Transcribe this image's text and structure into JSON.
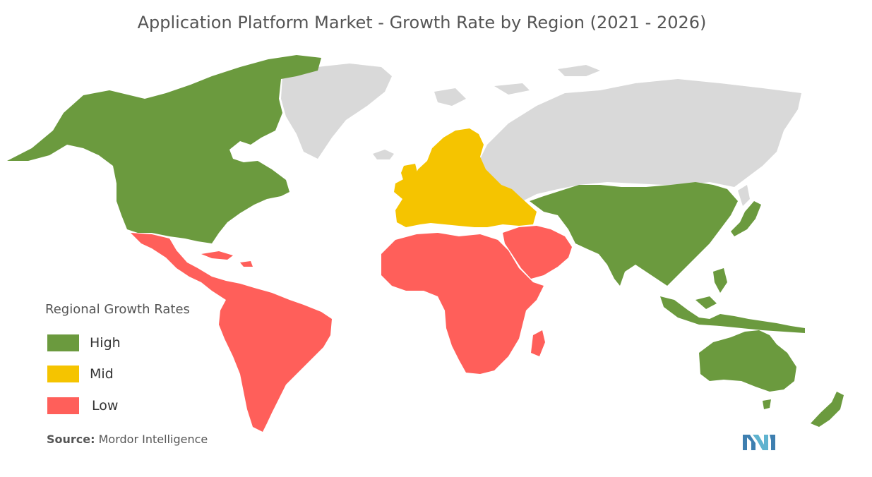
{
  "title": "Application Platform Market - Growth Rate by Region (2021 - 2026)",
  "legend": {
    "title": "Regional Growth Rates",
    "items": [
      {
        "label": "High",
        "color": "#6b9a3e"
      },
      {
        "label": "Mid",
        "color": "#f5c400"
      },
      {
        "label": "Low",
        "color": "#ff5f5a"
      }
    ]
  },
  "regions": [
    {
      "name": "North America",
      "level": "High"
    },
    {
      "name": "Europe",
      "level": "Mid"
    },
    {
      "name": "Asia Pacific",
      "level": "High"
    },
    {
      "name": "Latin America",
      "level": "Low"
    },
    {
      "name": "Middle East and Africa",
      "level": "Low"
    }
  ],
  "no_data_color": "#d9d9d9",
  "source": {
    "label": "Source:",
    "text": "Mordor Intelligence"
  }
}
